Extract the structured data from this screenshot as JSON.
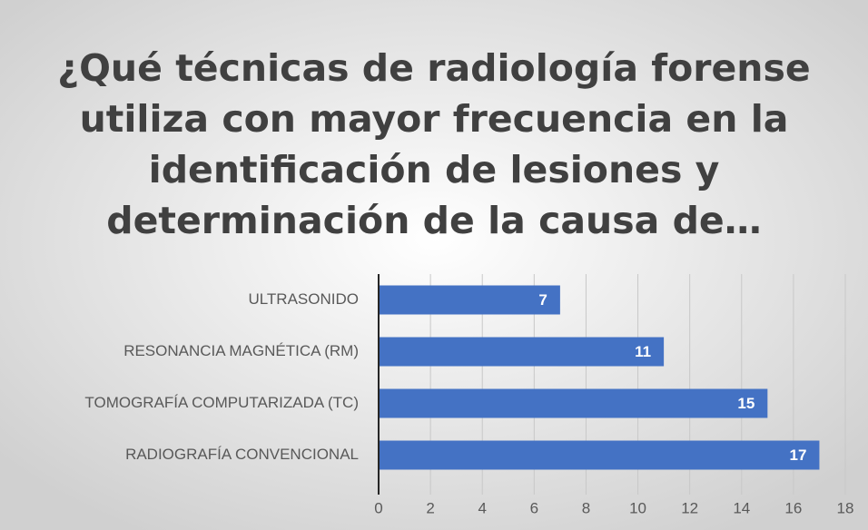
{
  "chart_data": {
    "type": "barh",
    "title": [
      "¿Qué técnicas de radiología forense",
      "utiliza con mayor frecuencia en la",
      "identificación de lesiones y",
      "determinación de la causa de…"
    ],
    "categories": [
      "ULTRASONIDO",
      "RESONANCIA MAGNÉTICA (RM)",
      "TOMOGRAFÍA COMPUTARIZADA (TC)",
      "RADIOGRAFÍA CONVENCIONAL"
    ],
    "values": [
      7,
      11,
      15,
      17
    ],
    "color": "#4472c4",
    "xlim": [
      0,
      18
    ],
    "xticks": [
      0,
      2,
      4,
      6,
      8,
      10,
      12,
      14,
      16,
      18
    ],
    "grid": true
  }
}
